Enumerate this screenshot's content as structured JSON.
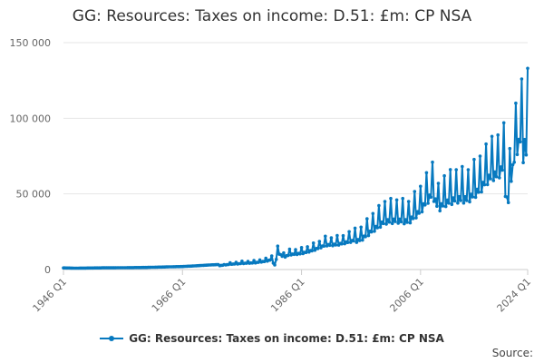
{
  "chart_data": {
    "type": "line",
    "title": "GG: Resources: Taxes on income: D.51: £m: CP NSA",
    "xlabel": "",
    "ylabel": "",
    "ylim": [
      0,
      150000
    ],
    "y_ticks": [
      0,
      50000,
      100000,
      150000
    ],
    "y_tick_labels": [
      "0",
      "50 000",
      "100 000",
      "150 000"
    ],
    "x_range": [
      "1946 Q1",
      "2024 Q1"
    ],
    "x_tick_labels": [
      "1946 Q1",
      "1966 Q1",
      "1986 Q1",
      "2006 Q1",
      "2024 Q1"
    ],
    "x_tick_years": [
      1946,
      1966,
      1986,
      2006,
      2024
    ],
    "grid": "horizontal",
    "legend_position": "bottom",
    "series": [
      {
        "name": "GG: Resources: Taxes on income: D.51: £m: CP NSA",
        "color": "#0779bf",
        "points": [
          [
            "1946 Q1",
            1100
          ],
          [
            "1948 Q1",
            900
          ],
          [
            "1950 Q1",
            1000
          ],
          [
            "1952 Q1",
            1100
          ],
          [
            "1954 Q1",
            1150
          ],
          [
            "1956 Q1",
            1200
          ],
          [
            "1958 Q1",
            1300
          ],
          [
            "1960 Q1",
            1400
          ],
          [
            "1962 Q1",
            1600
          ],
          [
            "1964 Q1",
            1800
          ],
          [
            "1966 Q1",
            2000
          ],
          [
            "1968 Q1",
            2400
          ],
          [
            "1970 Q1",
            2900
          ],
          [
            "1972 Q1",
            3300
          ],
          [
            "1974 Q1",
            4500
          ],
          [
            "1976 Q1",
            5500
          ],
          [
            "1978 Q1",
            6000
          ],
          [
            "1980 Q1",
            7500
          ],
          [
            "1981 Q1",
            9000
          ],
          [
            "1981 Q3",
            3000
          ],
          [
            "1982 Q1",
            15500
          ],
          [
            "1983 Q1",
            11000
          ],
          [
            "1984 Q1",
            13500
          ],
          [
            "1986 Q1",
            14500
          ],
          [
            "1988 Q1",
            17500
          ],
          [
            "1990 Q1",
            22000
          ],
          [
            "1992 Q1",
            22500
          ],
          [
            "1994 Q1",
            25000
          ],
          [
            "1996 Q1",
            28000
          ],
          [
            "1998 Q1",
            37000
          ],
          [
            "2000 Q1",
            45000
          ],
          [
            "2002 Q1",
            46000
          ],
          [
            "2004 Q1",
            45000
          ],
          [
            "2006 Q1",
            55000
          ],
          [
            "2007 Q1",
            64000
          ],
          [
            "2008 Q1",
            71000
          ],
          [
            "2009 Q1",
            57000
          ],
          [
            "2010 Q1",
            62000
          ],
          [
            "2012 Q1",
            66000
          ],
          [
            "2014 Q1",
            66000
          ],
          [
            "2016 Q1",
            75000
          ],
          [
            "2017 Q1",
            83000
          ],
          [
            "2018 Q1",
            88000
          ],
          [
            "2019 Q1",
            89000
          ],
          [
            "2020 Q1",
            97000
          ],
          [
            "2020 Q3",
            48000
          ],
          [
            "2021 Q1",
            80000
          ],
          [
            "2022 Q1",
            110000
          ],
          [
            "2023 Q1",
            126000
          ],
          [
            "2023 Q3",
            86000
          ],
          [
            "2024 Q1",
            133000
          ]
        ]
      }
    ]
  },
  "source_label": "Source:"
}
